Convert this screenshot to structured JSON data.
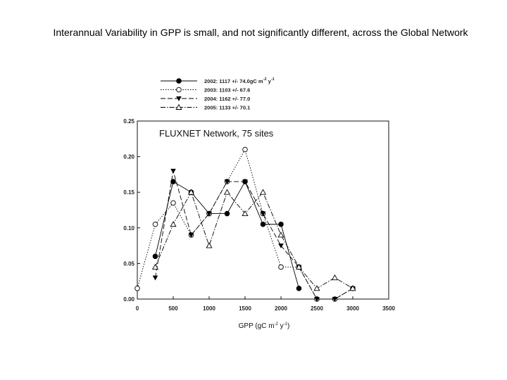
{
  "slide": {
    "title": "Interannual Variability in GPP is small, and not significantly different, across the Global Network"
  },
  "chart_data": {
    "type": "line",
    "annotation": "FLUXNET Network, 75 sites",
    "xlabel_main": "GPP (gC m",
    "xlabel_sup1": "-2",
    "xlabel_mid": " y",
    "xlabel_sup2": "-1",
    "xlabel_end": ")",
    "xlim": [
      0,
      3500
    ],
    "ylim": [
      0,
      0.25
    ],
    "xticks": [
      0,
      500,
      1000,
      1500,
      2000,
      2500,
      3000,
      3500
    ],
    "yticks": [
      "0.00",
      "0.05",
      "0.10",
      "0.15",
      "0.20",
      "0.25"
    ],
    "grid": false,
    "legend_position": "top",
    "series": [
      {
        "name": "2002: 1117 +/- 74.0gC m",
        "name_sup1": "-2",
        "name_mid": " y",
        "name_sup2": "-1",
        "marker": "filled-circle",
        "dash": "",
        "x": [
          250,
          500,
          750,
          1000,
          1250,
          1500,
          1750,
          2000,
          2250
        ],
        "y": [
          0.06,
          0.165,
          0.15,
          0.12,
          0.12,
          0.165,
          0.105,
          0.105,
          0.015
        ]
      },
      {
        "name": "2003: 1103 +/- 67.6",
        "marker": "open-circle",
        "dash": "1.5,2",
        "x": [
          0,
          250,
          500,
          750,
          1000,
          1250,
          1500,
          1750,
          2000,
          2250,
          2500,
          2750,
          3000
        ],
        "y": [
          0.015,
          0.105,
          0.135,
          0.09,
          0.12,
          0.165,
          0.21,
          0.12,
          0.045,
          0.045,
          0.0,
          0.0,
          0.015
        ]
      },
      {
        "name": "2004:  1162 +/- 77.0",
        "marker": "filled-triangle-down",
        "dash": "7,3",
        "x": [
          250,
          500,
          750,
          1000,
          1250,
          1500,
          1750,
          2000,
          2250,
          2500,
          2750,
          3000
        ],
        "y": [
          0.03,
          0.18,
          0.09,
          0.12,
          0.165,
          0.165,
          0.12,
          0.075,
          0.045,
          0.0,
          0.0,
          0.015
        ]
      },
      {
        "name": "2005: 1133 +/- 70.1",
        "marker": "open-triangle-up",
        "dash": "7,2,1.5,2",
        "x": [
          250,
          500,
          750,
          1000,
          1250,
          1500,
          1750,
          2000,
          2250,
          2500,
          2750,
          3000
        ],
        "y": [
          0.045,
          0.105,
          0.15,
          0.075,
          0.15,
          0.12,
          0.15,
          0.09,
          0.045,
          0.015,
          0.03,
          0.015
        ]
      }
    ]
  }
}
